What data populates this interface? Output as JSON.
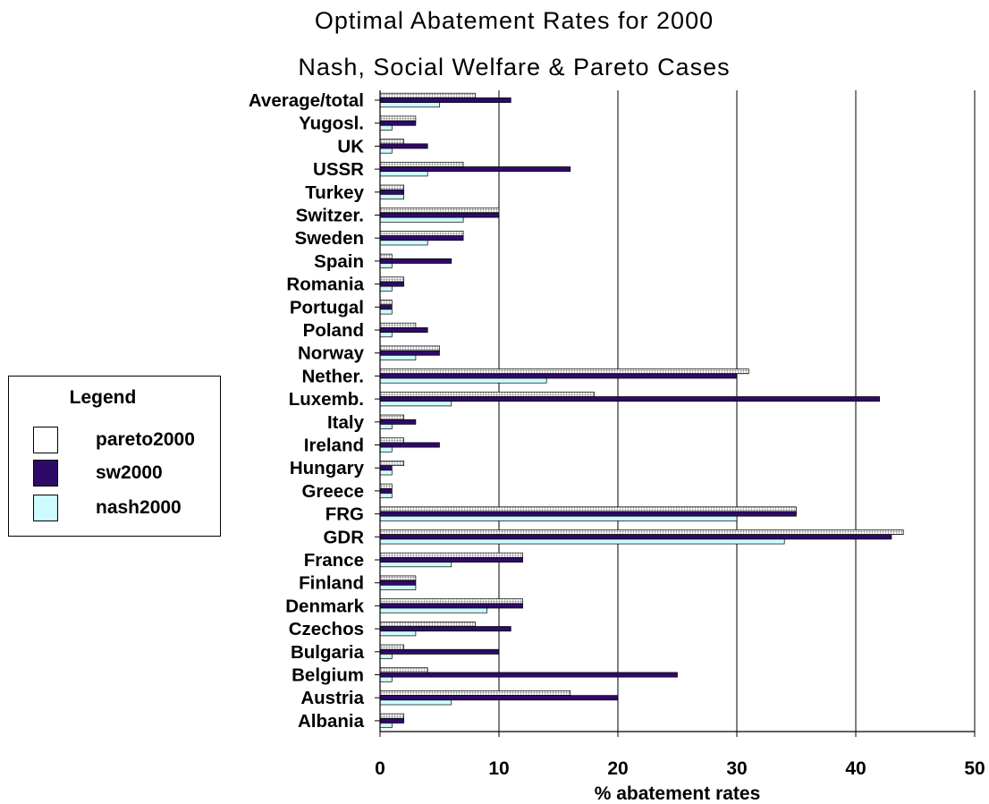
{
  "chart_data": {
    "type": "bar",
    "orientation": "horizontal",
    "title": "Optimal Abatement Rates for 2000",
    "subtitle": "Nash, Social Welfare & Pareto Cases",
    "xlabel": "% abatement rates",
    "ylabel": "",
    "xlim": [
      0,
      50
    ],
    "xticks": [
      0,
      10,
      20,
      30,
      40,
      50
    ],
    "grid": "vertical",
    "categories": [
      "Average/total",
      "Yugosl.",
      "UK",
      "USSR",
      "Turkey",
      "Switzer.",
      "Sweden",
      "Spain",
      "Romania",
      "Portugal",
      "Poland",
      "Norway",
      "Nether.",
      "Luxemb.",
      "Italy",
      "Ireland",
      "Hungary",
      "Greece",
      "FRG",
      "GDR",
      "France",
      "Finland",
      "Denmark",
      "Czechos",
      "Bulgaria",
      "Belgium",
      "Austria",
      "Albania"
    ],
    "series": [
      {
        "name": "pareto2000",
        "color": "#ffffff",
        "pattern": "grid",
        "values": [
          8,
          3,
          2,
          7,
          2,
          10,
          7,
          1,
          2,
          1,
          3,
          5,
          31,
          18,
          2,
          2,
          2,
          1,
          35,
          44,
          12,
          3,
          12,
          8,
          2,
          4,
          16,
          2
        ]
      },
      {
        "name": "sw2000",
        "color": "#2e0a68",
        "values": [
          11,
          3,
          4,
          16,
          2,
          10,
          7,
          6,
          2,
          1,
          4,
          5,
          30,
          42,
          3,
          5,
          1,
          1,
          35,
          43,
          12,
          3,
          12,
          11,
          10,
          25,
          20,
          2
        ]
      },
      {
        "name": "nash2000",
        "color": "#ccfcff",
        "values": [
          5,
          1,
          1,
          4,
          2,
          7,
          4,
          1,
          1,
          1,
          1,
          3,
          14,
          6,
          1,
          1,
          1,
          1,
          30,
          34,
          6,
          3,
          9,
          3,
          1,
          1,
          6,
          1
        ]
      }
    ],
    "legend": {
      "title": "Legend",
      "position": "left"
    }
  }
}
